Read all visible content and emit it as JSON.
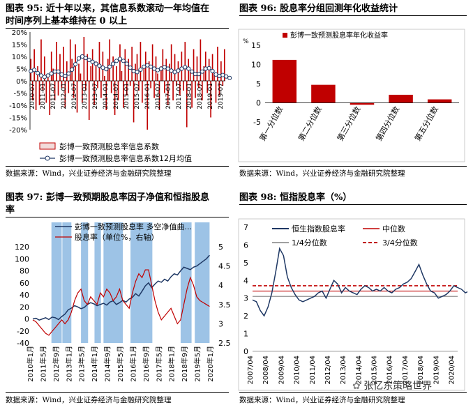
{
  "watermark": "张忆东策略世界",
  "chart_data": [
    {
      "id": "c95",
      "type": "bar",
      "title": "图表 95: 近十年以来，其信息系数滚动一年均值在时间序列上基本维持在 0 以上",
      "title_lines": [
        "图表 95: 近十年以来，其信息系数滚动一年均值在",
        "时间序列上基本维持在 0 以上"
      ],
      "source": "数据来源：Wind，兴业证券经济与金融研究院整理",
      "ylim": [
        -20,
        20
      ],
      "yticks": [
        "20%",
        "15%",
        "10%",
        "5%",
        "0%",
        "-5%",
        "-10%",
        "-15%",
        "-20%"
      ],
      "ytick_values": [
        20,
        15,
        10,
        5,
        0,
        -5,
        -10,
        -15,
        -20
      ],
      "xticks": [
        "2010-07",
        "2011-01",
        "2011-07",
        "2012-01",
        "2012-07",
        "2013-01",
        "2013-07",
        "2014-01",
        "2014-07",
        "2015-01",
        "2015-07",
        "2016-01",
        "2016-07",
        "2017-01",
        "2017-07",
        "2018-01",
        "2018-07",
        "2019-01",
        "2019-07"
      ],
      "legend": [
        "彭博一致预测股息率信息系数",
        "彭博一致预测股息率信息系数12月均值"
      ],
      "series": [
        {
          "name": "彭博一致预测股息率信息系数",
          "values": [
            9,
            -8,
            13,
            -12,
            6,
            -10,
            17,
            -4,
            10,
            -9,
            2,
            -14,
            12,
            5,
            -8,
            16,
            -6,
            11,
            -3,
            14,
            -11,
            8,
            -5,
            17,
            9,
            -7,
            15,
            -13,
            7,
            3,
            -9,
            18,
            -4,
            11,
            -16,
            6,
            13,
            -10,
            8,
            -3,
            16,
            -7,
            12,
            2,
            -12,
            9,
            17,
            -5,
            10,
            -14,
            6,
            -8,
            15,
            4,
            -11,
            13,
            -6,
            9,
            -2,
            14,
            -17,
            7,
            11,
            -4,
            16,
            -9,
            5,
            12,
            -20,
            8,
            -3,
            15,
            -7,
            10,
            3,
            -12,
            6,
            13,
            -5,
            9,
            -10,
            7,
            15,
            -8,
            11,
            -2,
            8,
            -6,
            12,
            -4,
            16,
            -19,
            9,
            4,
            -11,
            13,
            -7,
            10,
            -3,
            17,
            -8,
            6,
            12,
            -5,
            9,
            -15,
            11,
            3,
            -9,
            14,
            -6,
            8,
            -2,
            13
          ]
        },
        {
          "name": "彭博一致预测股息率信息系数12月均值",
          "values": [
            4,
            4.2,
            4.5,
            3.8,
            3.2,
            2.6,
            2.2,
            1.8,
            1.6,
            1.8,
            2.2,
            2.6,
            3.0,
            3.4,
            3.8,
            4.0,
            3.8,
            3.2,
            2.6,
            2.2,
            2.0,
            2.4,
            3.0,
            3.8,
            4.6,
            5.6,
            6.8,
            8.0,
            9.2,
            9.8,
            10.0,
            9.8,
            9.4,
            9.0,
            8.6,
            8.2,
            7.8,
            7.4,
            7.0,
            6.6,
            6.2,
            5.8,
            5.4,
            5.0,
            4.8,
            5.2,
            5.8,
            6.4,
            7.0,
            7.6,
            8.2,
            8.6,
            9.0,
            8.8,
            8.2,
            7.6,
            7.0,
            6.2,
            5.4,
            4.6,
            4.0,
            3.6,
            3.6,
            4.0,
            4.6,
            5.2,
            5.8,
            6.2,
            6.4,
            6.2,
            5.8,
            5.4,
            5.0,
            4.6,
            4.4,
            4.6,
            5.0,
            5.4,
            5.6,
            5.4,
            5.0,
            4.6,
            4.2,
            3.8,
            3.6,
            3.8,
            4.2,
            4.6,
            5.0,
            5.4,
            5.6,
            5.4,
            5.0,
            4.4,
            3.8,
            3.2,
            2.8,
            2.6,
            2.8,
            3.2,
            3.8,
            4.4,
            5.0,
            5.4,
            5.2,
            4.6,
            4.0,
            3.2,
            2.6,
            2.2,
            2.0,
            2.2,
            2.4,
            2.2,
            1.8,
            1.4,
            1.2,
            1.4
          ]
        }
      ]
    },
    {
      "id": "c96",
      "type": "bar",
      "title": "图表 96: 股息率分组回测年化收益统计",
      "source": "数据来源：Wind，兴业证券经济与金融研究院整理",
      "ylabel": "%",
      "ylim": [
        -5,
        15
      ],
      "yticks": [
        "15",
        "10",
        "5",
        "0",
        "-5"
      ],
      "ytick_values": [
        15,
        10,
        5,
        0,
        -5
      ],
      "categories": [
        "第一分位数",
        "第二分位数",
        "第三分位数",
        "第四分位数",
        "第五分位数"
      ],
      "legend": [
        "彭博一致预测股息率年化收益率"
      ],
      "series": [
        {
          "name": "彭博一致预测股息率年化收益率",
          "values": [
            11.2,
            4.7,
            -0.5,
            2.1,
            0.9
          ]
        }
      ]
    },
    {
      "id": "c97",
      "type": "line",
      "title": "图表 97: 彭博一致预期股息率因子净值和恒指股息率",
      "title_lines": [
        "图表 97: 彭博一致预期股息率因子净值和恒指股息",
        "率"
      ],
      "source": "数据来源：Wind，兴业证券经济与金融研究院整理",
      "ylim_left": [
        -40,
        120
      ],
      "yticks_left": [
        "120",
        "100",
        "80",
        "60",
        "40",
        "20",
        "0",
        "-20",
        "-40"
      ],
      "ytick_values_left": [
        120,
        100,
        80,
        60,
        40,
        20,
        0,
        -20,
        -40
      ],
      "ylim_right": [
        2.5,
        5
      ],
      "yticks_right": [
        "5",
        "4.5",
        "4",
        "3.5",
        "3",
        "2.5"
      ],
      "ytick_values_right": [
        5,
        4.5,
        4,
        3.5,
        3,
        2.5
      ],
      "xticks": [
        "2010年1月",
        "2011年5月",
        "2012年9月",
        "2013年1月",
        "2013年5月",
        "2014年1月",
        "2014年9月",
        "2015年5月",
        "2016年1月",
        "2016年9月",
        "2017年5月",
        "2018年1月",
        "2018年9月",
        "2019年5月",
        "2020年1月"
      ],
      "legend": [
        "彭博一致预测股息率 多空净值曲...",
        "股息率（单位%，右轴）"
      ],
      "shaded_periods": [
        [
          2.9,
          4.5
        ],
        [
          4.6,
          6.0
        ],
        [
          7.5,
          8.6
        ],
        [
          9.6,
          10.6
        ],
        [
          11.0,
          14.0
        ],
        [
          15.2,
          18.6
        ],
        [
          23.0,
          24.7
        ],
        [
          25.2,
          27.5
        ]
      ],
      "series": [
        {
          "name": "彭博一致预测股息率 多空净值曲...",
          "axis": "left",
          "x": [
            0,
            0.5,
            1,
            1.5,
            2,
            2.5,
            3,
            3.5,
            4,
            4.5,
            5,
            5.5,
            6,
            6.5,
            7,
            7.5,
            8,
            8.5,
            9,
            9.5,
            10,
            10.5,
            11,
            11.5,
            12,
            12.5,
            13,
            13.5,
            14,
            14.5,
            15,
            15.5,
            16,
            16.5,
            17,
            17.5,
            18,
            18.5,
            19,
            19.5,
            20,
            20.5,
            21,
            21.5,
            22,
            22.5,
            23,
            23.5,
            24,
            24.5,
            25,
            25.5,
            26,
            26.5,
            27,
            27.5
          ],
          "values": [
            0,
            1,
            -2,
            0,
            2,
            -1,
            3,
            2,
            -1,
            4,
            8,
            15,
            18,
            22,
            20,
            17,
            19,
            24,
            27,
            25,
            22,
            24,
            26,
            23,
            28,
            30,
            24,
            27,
            31,
            28,
            33,
            36,
            42,
            38,
            46,
            55,
            60,
            52,
            58,
            63,
            61,
            66,
            63,
            70,
            75,
            73,
            80,
            86,
            84,
            82,
            86,
            88,
            92,
            96,
            100,
            106
          ]
        },
        {
          "name": "股息率（单位%，右轴）",
          "axis": "right",
          "x": [
            0,
            0.5,
            1,
            1.5,
            2,
            2.5,
            3,
            3.5,
            4,
            4.5,
            5,
            5.5,
            6,
            6.5,
            7,
            7.5,
            8,
            8.5,
            9,
            9.5,
            10,
            10.5,
            11,
            11.5,
            12,
            12.5,
            13,
            13.5,
            14,
            14.5,
            15,
            15.5,
            16,
            16.5,
            17,
            17.5,
            18,
            18.5,
            19,
            19.5,
            20,
            20.5,
            21,
            21.5,
            22,
            22.5,
            23,
            23.5,
            24,
            24.5,
            25,
            25.5,
            26,
            26.5,
            27,
            27.5
          ],
          "values": [
            3.1,
            3.05,
            2.95,
            2.85,
            2.75,
            2.7,
            2.8,
            2.9,
            3.0,
            3.1,
            3.0,
            3.1,
            3.3,
            3.6,
            3.8,
            3.9,
            3.6,
            3.5,
            3.7,
            3.6,
            3.5,
            3.8,
            3.7,
            3.9,
            3.8,
            3.6,
            3.7,
            3.9,
            3.6,
            3.5,
            3.4,
            3.8,
            4.1,
            4.3,
            4.2,
            4.4,
            4.4,
            4.0,
            3.6,
            3.3,
            3.1,
            3.2,
            3.3,
            3.4,
            3.2,
            3.0,
            3.1,
            3.5,
            3.9,
            4.2,
            4.0,
            3.7,
            3.6,
            3.55,
            3.5,
            3.45
          ]
        }
      ]
    },
    {
      "id": "c98",
      "type": "line",
      "title": "图表 98: 恒指股息率（%）",
      "source": "数据来源：Wind，兴业证券经济与金融研究院整理",
      "ylim": [
        0,
        7
      ],
      "yticks": [
        "7",
        "6",
        "5",
        "4",
        "3",
        "2",
        "1",
        "0"
      ],
      "ytick_values": [
        7,
        6,
        5,
        4,
        3,
        2,
        1,
        0
      ],
      "xticks": [
        "2007/04",
        "2008/04",
        "2009/04",
        "2010/04",
        "2011/04",
        "2012/04",
        "2013/04",
        "2014/04",
        "2015/04",
        "2016/04",
        "2017/04",
        "2018/04",
        "2019/04",
        "2020/04"
      ],
      "legend": [
        "恒生指数股息率",
        "中位数",
        "1/4分位数",
        "3/4分位数"
      ],
      "reference_lines": {
        "中位数": 3.4,
        "1/4分位数": 3.1,
        "3/4分位数": 3.7
      },
      "series": [
        {
          "name": "恒生指数股息率",
          "x_start": 2007.25,
          "x_step": 0.25,
          "values": [
            2.9,
            2.8,
            2.3,
            2.0,
            2.5,
            3.3,
            4.5,
            5.8,
            5.4,
            4.2,
            3.6,
            3.2,
            2.9,
            2.8,
            2.9,
            3.0,
            3.1,
            3.3,
            3.4,
            3.0,
            3.5,
            4.0,
            3.8,
            3.3,
            3.6,
            3.4,
            3.3,
            3.2,
            3.5,
            3.7,
            3.6,
            3.4,
            3.5,
            3.4,
            3.6,
            3.4,
            3.3,
            3.5,
            3.6,
            3.8,
            3.9,
            4.1,
            4.5,
            4.9,
            4.3,
            3.8,
            3.4,
            3.3,
            3.0,
            3.1,
            3.2,
            3.4,
            3.7,
            3.6,
            3.5,
            3.3,
            3.4,
            3.5,
            3.8,
            4.0,
            3.9,
            3.7,
            3.6,
            3.8,
            4.0,
            3.7,
            3.6,
            3.4,
            3.5,
            3.8,
            3.6,
            4.5
          ]
        }
      ]
    }
  ]
}
